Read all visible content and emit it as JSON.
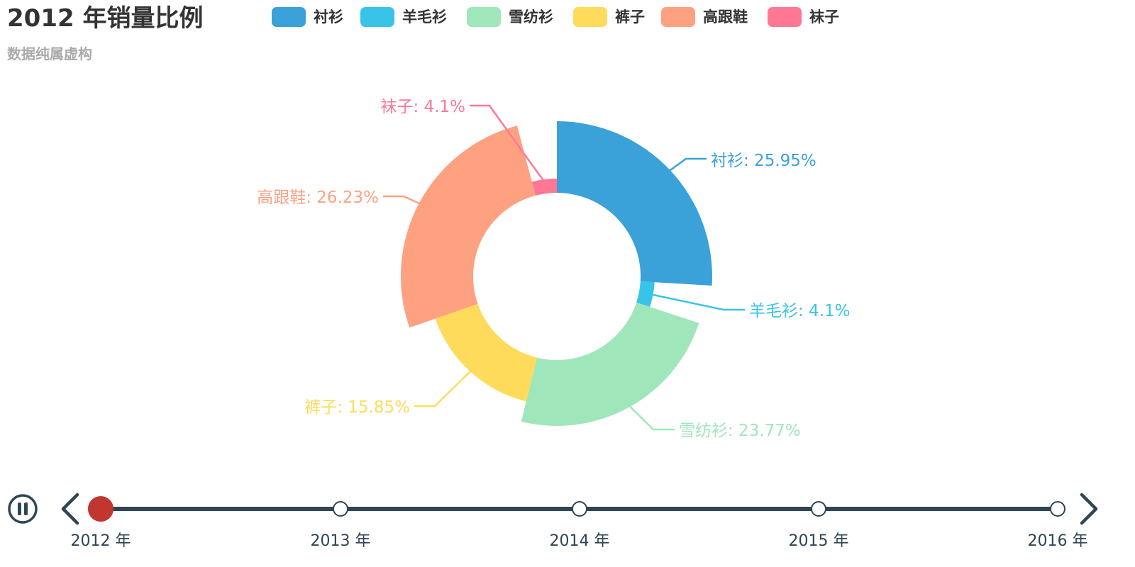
{
  "chart_data": {
    "type": "pie",
    "variant": "rose-donut",
    "title": "2012 年销量比例",
    "subtitle": "数据纯属虚构",
    "legend": {
      "placement": "top",
      "items": [
        "衬衫",
        "羊毛衫",
        "雪纺衫",
        "裤子",
        "高跟鞋",
        "袜子"
      ]
    },
    "slices": [
      {
        "name": "衬衫",
        "percent": 25.95,
        "label": "衬衫: 25.95%",
        "color": "#3aa1d9"
      },
      {
        "name": "羊毛衫",
        "percent": 4.1,
        "label": "羊毛衫: 4.1%",
        "color": "#37c4e8"
      },
      {
        "name": "雪纺衫",
        "percent": 23.77,
        "label": "雪纺衫: 23.77%",
        "color": "#a0e6bb"
      },
      {
        "name": "裤子",
        "percent": 15.85,
        "label": "裤子: 15.85%",
        "color": "#fedb5b"
      },
      {
        "name": "高跟鞋",
        "percent": 26.23,
        "label": "高跟鞋: 26.23%",
        "color": "#fea181"
      },
      {
        "name": "袜子",
        "percent": 4.1,
        "label": "袜子: 4.1%",
        "color": "#fe7895"
      }
    ]
  },
  "timeline": {
    "items": [
      "2012 年",
      "2013 年",
      "2014 年",
      "2015 年",
      "2016 年"
    ],
    "current_index": 0,
    "playing": true
  },
  "colors": {
    "title": "#333333",
    "subtitle": "#aaaaaa",
    "timeline_line": "#2f4554",
    "timeline_active": "#c23531"
  },
  "icons": {
    "play_control": "pause-icon",
    "prev": "chevron-left-icon",
    "next": "chevron-right-icon"
  }
}
